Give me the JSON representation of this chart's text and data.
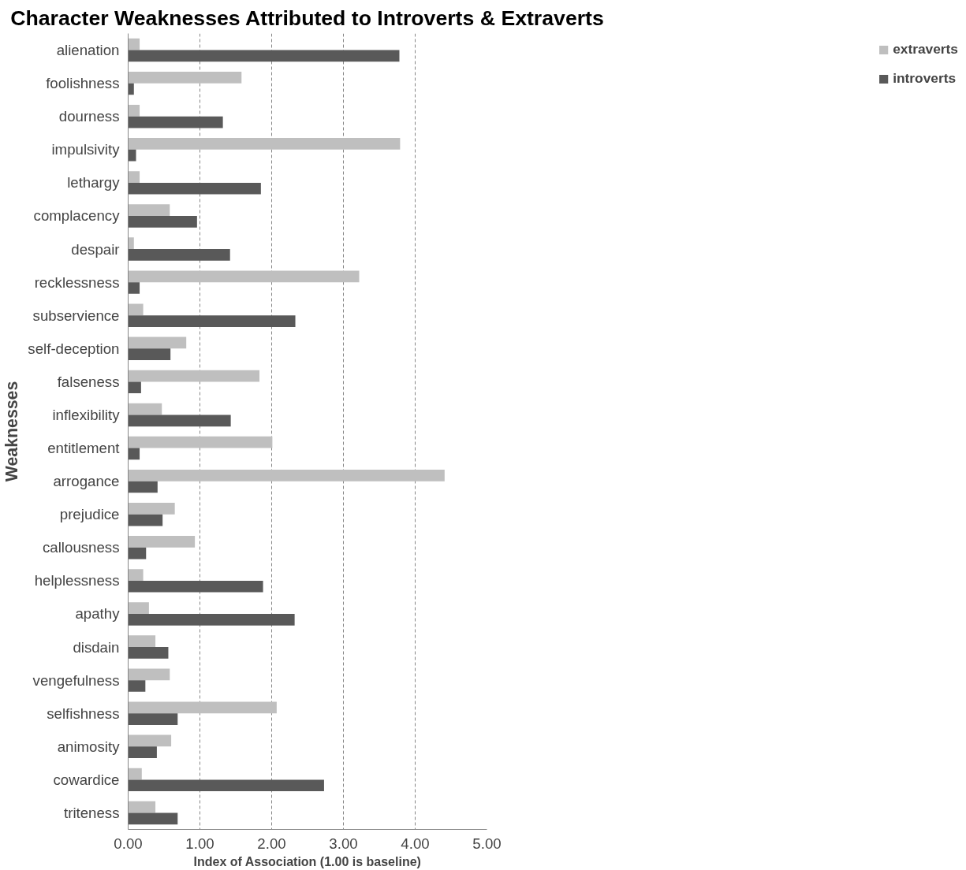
{
  "chart_data": {
    "type": "bar",
    "orientation": "horizontal",
    "title": "Character Weaknesses Attributed to Introverts & Extraverts",
    "xlabel": "Index of Association (1.00 is baseline)",
    "ylabel": "Weaknesses",
    "categories": [
      "alienation",
      "foolishness",
      "dourness",
      "impulsivity",
      "lethargy",
      "complacency",
      "despair",
      "recklessness",
      "subservience",
      "self-deception",
      "falseness",
      "inflexibility",
      "entitlement",
      "arrogance",
      "prejudice",
      "callousness",
      "helplessness",
      "apathy",
      "disdain",
      "vengefulness",
      "selfishness",
      "animosity",
      "cowardice",
      "triteness"
    ],
    "series": [
      {
        "name": "extraverts",
        "color": "#bfbfbf",
        "values": [
          0.16,
          1.58,
          0.16,
          3.79,
          0.16,
          0.58,
          0.08,
          3.22,
          0.21,
          0.81,
          1.83,
          0.47,
          2.01,
          4.41,
          0.65,
          0.93,
          0.21,
          0.29,
          0.38,
          0.58,
          2.07,
          0.6,
          0.19,
          0.38
        ]
      },
      {
        "name": "introverts",
        "color": "#595959",
        "values": [
          3.78,
          0.08,
          1.32,
          0.11,
          1.85,
          0.96,
          1.42,
          0.16,
          2.33,
          0.59,
          0.18,
          1.43,
          0.16,
          0.41,
          0.48,
          0.25,
          1.88,
          2.32,
          0.56,
          0.24,
          0.69,
          0.4,
          2.73,
          0.69
        ]
      }
    ],
    "xlim": [
      0,
      5
    ],
    "xticks": [
      {
        "value": 0,
        "label": "0.00"
      },
      {
        "value": 1,
        "label": "1.00"
      },
      {
        "value": 2,
        "label": "2.00"
      },
      {
        "value": 3,
        "label": "3.00"
      },
      {
        "value": 4,
        "label": "4.00"
      },
      {
        "value": 5,
        "label": "5.00"
      }
    ],
    "grid": "x",
    "legend": "right"
  }
}
